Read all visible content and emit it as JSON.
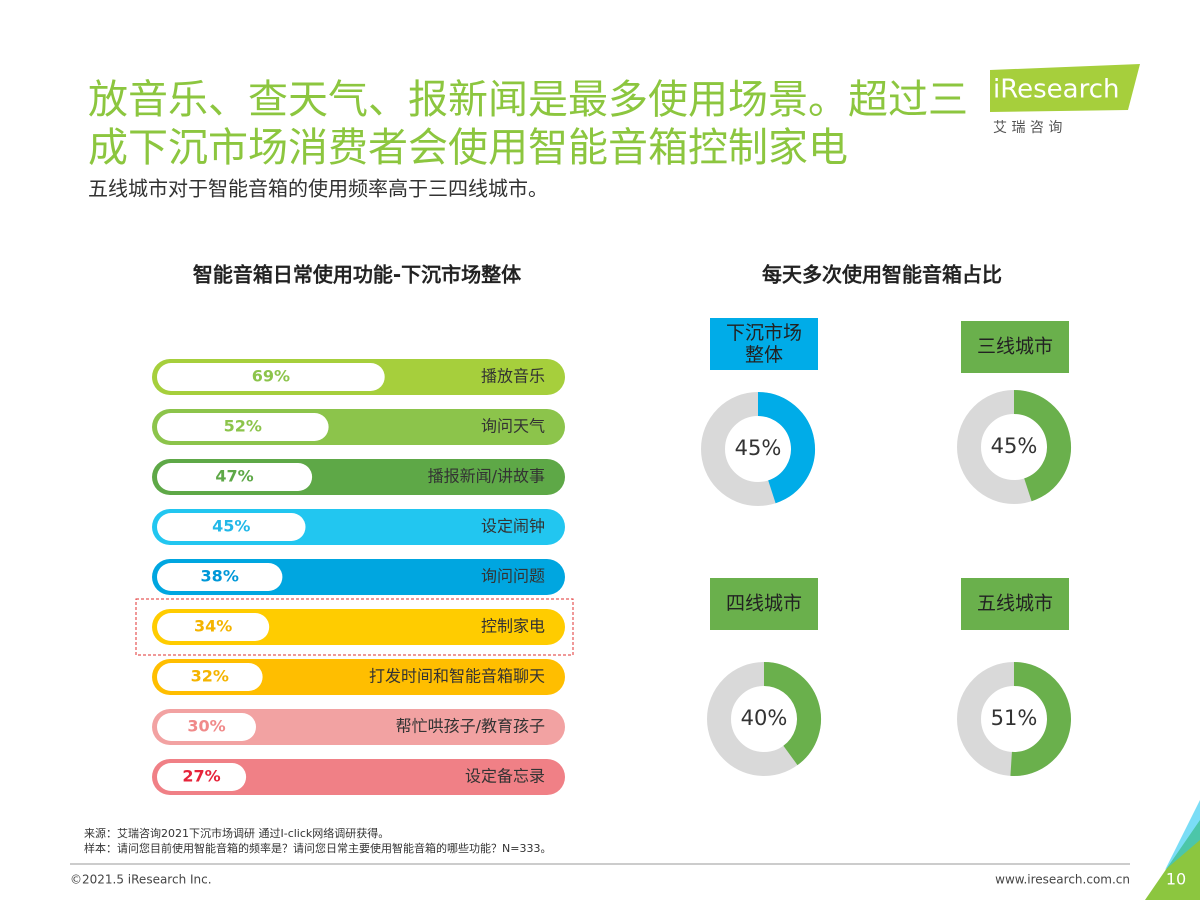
{
  "header": {
    "title": [
      "放音乐、查天气、报新闻是最多使用场景。超过三",
      "成下沉市场消费者会使用智能音箱控制家电"
    ],
    "subtitle": "五线城市对于智能音箱的使用频率高于三四线城市。",
    "logo": "iResearch",
    "logo_cn": "艾 瑞 咨 询"
  },
  "chart_data": [
    {
      "type": "bar",
      "title": "智能音箱日常使用功能-下沉市场整体",
      "categories": [
        "播放音乐",
        "询问天气",
        "播报新闻/讲故事",
        "设定闹钟",
        "询问问题",
        "控制家电",
        "打发时间和智能音箱聊天",
        "帮忙哄孩子/教育孩子",
        "设定备忘录"
      ],
      "values": [
        69,
        52,
        47,
        45,
        38,
        34,
        32,
        30,
        27
      ],
      "value_labels": [
        "69%",
        "52%",
        "47%",
        "45%",
        "38%",
        "34%",
        "32%",
        "30%",
        "27%"
      ],
      "colors": [
        "#a6cf3c",
        "#8cc44b",
        "#5ea847",
        "#22c6f0",
        "#00a6e0",
        "#ffcc00",
        "#ffbe00",
        "#f2a2a2",
        "#f08086"
      ],
      "label_colors": [
        "#8cc44b",
        "#8cc44b",
        "#5ea847",
        "#22b8e8",
        "#0098d8",
        "#f4b400",
        "#f4b400",
        "#f08a8a",
        "#e6243a"
      ],
      "xlim": [
        0,
        100
      ],
      "highlight_index": 5
    },
    {
      "type": "donut",
      "title": "每天多次使用智能音箱占比",
      "categories": [
        "下沉市场\n整体",
        "三线城市",
        "四线城市",
        "五线城市"
      ],
      "values": [
        45,
        45,
        40,
        51
      ],
      "value_labels": [
        "45%",
        "45%",
        "40%",
        "51%"
      ],
      "colors": [
        "#00ace8",
        "#6ab04c",
        "#6ab04c",
        "#6ab04c"
      ],
      "track_color": "#d9d9d9"
    }
  ],
  "footer": {
    "source": "来源：艾瑞咨询2021下沉市场调研 通过I-click网络调研获得。",
    "sample": "样本：请问您目前使用智能音箱的频率是？请问您日常主要使用智能音箱的哪些功能？N=333。",
    "copyright": "©2021.5 iResearch Inc.",
    "website": "www.iresearch.com.cn",
    "page": "10"
  }
}
